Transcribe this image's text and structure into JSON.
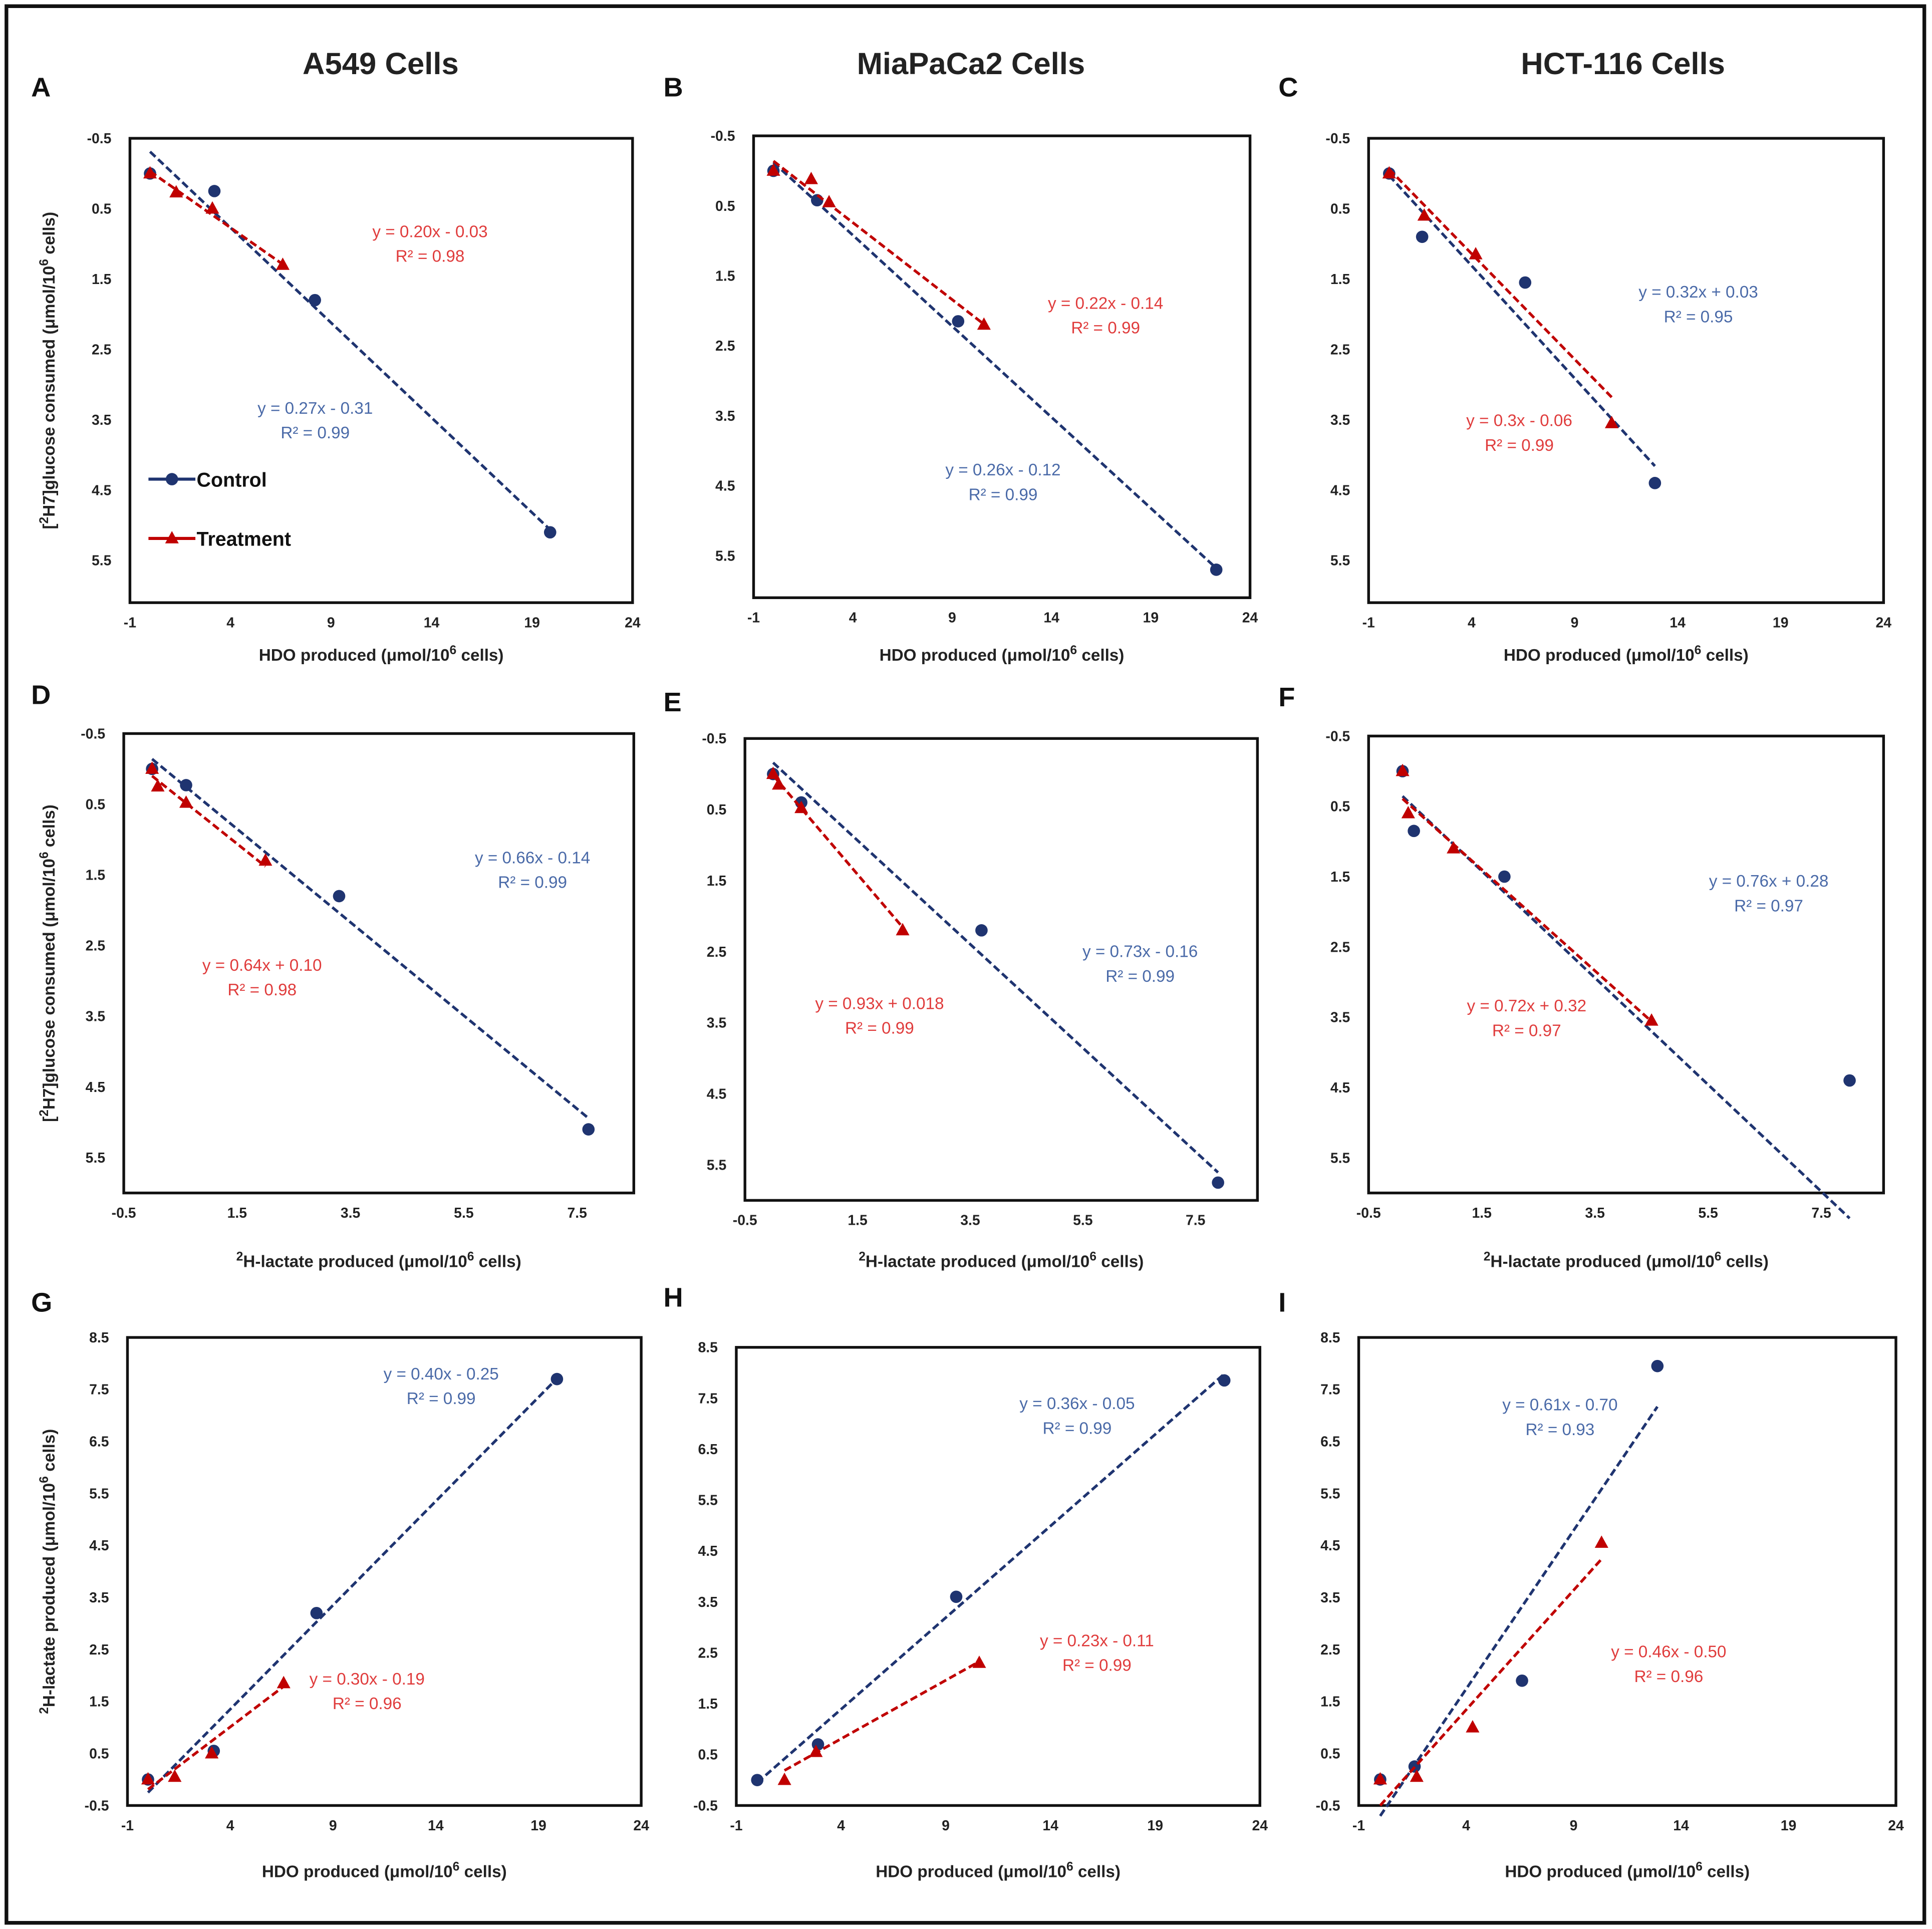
{
  "colors": {
    "control": "#1f3470",
    "treatment": "#c00000",
    "control_text": "#4a6aa8",
    "treatment_text": "#e03c3c"
  },
  "column_titles": [
    "A549 Cells",
    "MiaPaCa2 Cells",
    "HCT-116 Cells"
  ],
  "legend": {
    "control": "Control",
    "treatment": "Treatment"
  },
  "labels": {
    "glucose": {
      "pre": "[",
      "sup": "2",
      "post": "H7]glucose consumed (μmol/10",
      "sup2": "6",
      "post2": " cells)"
    },
    "lactate_y": {
      "pre": "",
      "sup": "2",
      "post": "H-lactate produced (μmol/10",
      "sup2": "6",
      "post2": " cells)"
    },
    "hdo": {
      "pre": "",
      "sup": "",
      "post": "HDO produced (μmol/10",
      "sup2": "6",
      "post2": " cells)"
    },
    "lactate_x": {
      "pre": "",
      "sup": "2",
      "post": "H-lactate produced (μmol/10",
      "sup2": "6",
      "post2": " cells)"
    }
  },
  "chart_data": [
    {
      "panel": "A",
      "type": "scatter",
      "xlabel_key": "hdo",
      "ylabel_key": "glucose",
      "xlim": [
        -1,
        24
      ],
      "ylim": [
        -0.5,
        6.1
      ],
      "y_inverted": true,
      "xticks": [
        "-1",
        "4",
        "9",
        "14",
        "19",
        "24"
      ],
      "yticks": [
        "-0.5",
        "0.5",
        "1.5",
        "2.5",
        "3.5",
        "4.5",
        "5.5"
      ],
      "series": [
        {
          "name": "Control",
          "points": [
            [
              0,
              0
            ],
            [
              3.2,
              0.25
            ],
            [
              8.2,
              1.8
            ],
            [
              19.9,
              5.1
            ]
          ],
          "fit": {
            "m": 0.27,
            "b": -0.31
          },
          "equation": "y = 0.27x - 0.31",
          "r2": "R² = 0.99"
        },
        {
          "name": "Treatment",
          "points": [
            [
              0,
              0
            ],
            [
              1.3,
              0.27
            ],
            [
              3.1,
              0.5
            ],
            [
              6.6,
              1.3
            ]
          ],
          "fit": {
            "m": 0.2,
            "b": -0.03
          },
          "equation": "y = 0.20x - 0.03",
          "r2": "R² = 0.98"
        }
      ]
    },
    {
      "panel": "B",
      "type": "scatter",
      "xlabel_key": "hdo",
      "ylabel_key": "glucose",
      "xlim": [
        -1,
        24
      ],
      "ylim": [
        -0.5,
        6.1
      ],
      "y_inverted": true,
      "xticks": [
        "-1",
        "4",
        "9",
        "14",
        "19",
        "24"
      ],
      "yticks": [
        "-0.5",
        "0.5",
        "1.5",
        "2.5",
        "3.5",
        "4.5",
        "5.5"
      ],
      "series": [
        {
          "name": "Control",
          "points": [
            [
              0,
              0
            ],
            [
              2.2,
              0.42
            ],
            [
              9.3,
              2.15
            ],
            [
              22.3,
              5.7
            ]
          ],
          "fit": {
            "m": 0.26,
            "b": -0.12
          },
          "equation": "y = 0.26x - 0.12",
          "r2": "R² = 0.99"
        },
        {
          "name": "Treatment",
          "points": [
            [
              0,
              0
            ],
            [
              1.9,
              0.12
            ],
            [
              2.8,
              0.45
            ],
            [
              10.6,
              2.2
            ]
          ],
          "fit": {
            "m": 0.22,
            "b": -0.14
          },
          "equation": "y = 0.22x - 0.14",
          "r2": "R² = 0.99"
        }
      ]
    },
    {
      "panel": "C",
      "type": "scatter",
      "xlabel_key": "hdo",
      "ylabel_key": "glucose",
      "xlim": [
        -1,
        24
      ],
      "ylim": [
        -0.5,
        6.1
      ],
      "y_inverted": true,
      "xticks": [
        "-1",
        "4",
        "9",
        "14",
        "19",
        "24"
      ],
      "yticks": [
        "-0.5",
        "0.5",
        "1.5",
        "2.5",
        "3.5",
        "4.5",
        "5.5"
      ],
      "series": [
        {
          "name": "Control",
          "points": [
            [
              0,
              0
            ],
            [
              1.6,
              0.9
            ],
            [
              6.6,
              1.55
            ],
            [
              12.9,
              4.4
            ]
          ],
          "fit": {
            "m": 0.32,
            "b": 0.03
          },
          "equation": "y = 0.32x + 0.03",
          "r2": "R² = 0.95"
        },
        {
          "name": "Treatment",
          "points": [
            [
              0,
              0
            ],
            [
              1.7,
              0.6
            ],
            [
              4.2,
              1.15
            ],
            [
              10.8,
              3.55
            ]
          ],
          "fit": {
            "m": 0.3,
            "b": -0.06
          },
          "equation": "y = 0.3x - 0.06",
          "r2": "R² = 0.99"
        }
      ]
    },
    {
      "panel": "D",
      "type": "scatter",
      "xlabel_key": "lactate_x",
      "ylabel_key": "glucose",
      "xlim": [
        -0.5,
        8.5
      ],
      "ylim": [
        -0.5,
        6.0
      ],
      "y_inverted": true,
      "xticks": [
        "-0.5",
        "1.5",
        "3.5",
        "5.5",
        "7.5"
      ],
      "yticks": [
        "-0.5",
        "0.5",
        "1.5",
        "2.5",
        "3.5",
        "4.5",
        "5.5"
      ],
      "series": [
        {
          "name": "Control",
          "points": [
            [
              0,
              0
            ],
            [
              0.6,
              0.23
            ],
            [
              3.3,
              1.8
            ],
            [
              7.7,
              5.1
            ]
          ],
          "fit": {
            "m": 0.66,
            "b": -0.14
          },
          "equation": "y = 0.66x - 0.14",
          "r2": "R² = 0.99"
        },
        {
          "name": "Treatment",
          "points": [
            [
              0,
              0
            ],
            [
              0.1,
              0.25
            ],
            [
              0.6,
              0.48
            ],
            [
              2.0,
              1.3
            ]
          ],
          "fit": {
            "m": 0.64,
            "b": 0.1
          },
          "equation": "y = 0.64x + 0.10",
          "r2": "R² = 0.98"
        }
      ]
    },
    {
      "panel": "E",
      "type": "scatter",
      "xlabel_key": "lactate_x",
      "ylabel_key": "glucose",
      "xlim": [
        -0.5,
        8.6
      ],
      "ylim": [
        -0.5,
        6.0
      ],
      "y_inverted": true,
      "xticks": [
        "-0.5",
        "1.5",
        "3.5",
        "5.5",
        "7.5"
      ],
      "yticks": [
        "-0.5",
        "0.5",
        "1.5",
        "2.5",
        "3.5",
        "4.5",
        "5.5"
      ],
      "series": [
        {
          "name": "Control",
          "points": [
            [
              0,
              0
            ],
            [
              0.5,
              0.4
            ],
            [
              3.7,
              2.2
            ],
            [
              7.9,
              5.75
            ]
          ],
          "fit": {
            "m": 0.73,
            "b": -0.16
          },
          "equation": "y = 0.73x - 0.16",
          "r2": "R² = 0.99"
        },
        {
          "name": "Treatment",
          "points": [
            [
              0,
              0
            ],
            [
              0.1,
              0.15
            ],
            [
              0.5,
              0.48
            ],
            [
              2.3,
              2.2
            ]
          ],
          "fit": {
            "m": 0.93,
            "b": 0.018
          },
          "equation": "y = 0.93x + 0.018",
          "r2": "R² = 0.99"
        }
      ]
    },
    {
      "panel": "F",
      "type": "scatter",
      "xlabel_key": "lactate_x",
      "ylabel_key": "glucose",
      "xlim": [
        -0.5,
        8.6
      ],
      "ylim": [
        -0.5,
        6.0
      ],
      "y_inverted": true,
      "xticks": [
        "-0.5",
        "1.5",
        "3.5",
        "5.5",
        "7.5"
      ],
      "yticks": [
        "-0.5",
        "0.5",
        "1.5",
        "2.5",
        "3.5",
        "4.5",
        "5.5"
      ],
      "series": [
        {
          "name": "Control",
          "points": [
            [
              0.1,
              0
            ],
            [
              0.3,
              0.85
            ],
            [
              1.9,
              1.5
            ],
            [
              8.0,
              4.4
            ]
          ],
          "fit": {
            "m": 0.76,
            "b": 0.28
          },
          "equation": "y = 0.76x + 0.28",
          "r2": "R² = 0.97"
        },
        {
          "name": "Treatment",
          "points": [
            [
              0.1,
              0
            ],
            [
              0.2,
              0.6
            ],
            [
              1.0,
              1.1
            ],
            [
              4.5,
              3.55
            ]
          ],
          "fit": {
            "m": 0.72,
            "b": 0.32
          },
          "equation": "y = 0.72x + 0.32",
          "r2": "R² = 0.97"
        }
      ]
    },
    {
      "panel": "G",
      "type": "scatter",
      "xlabel_key": "hdo",
      "ylabel_key": "lactate_y",
      "xlim": [
        -1,
        24
      ],
      "ylim": [
        -0.5,
        8.5
      ],
      "y_inverted": false,
      "xticks": [
        "-1",
        "4",
        "9",
        "14",
        "19",
        "24"
      ],
      "yticks": [
        "8.5",
        "7.5",
        "6.5",
        "5.5",
        "4.5",
        "3.5",
        "2.5",
        "1.5",
        "0.5",
        "-0.5"
      ],
      "series": [
        {
          "name": "Control",
          "points": [
            [
              0,
              0
            ],
            [
              3.2,
              0.55
            ],
            [
              8.2,
              3.2
            ],
            [
              19.9,
              7.7
            ]
          ],
          "fit": {
            "m": 0.4,
            "b": -0.25
          },
          "equation": "y = 0.40x - 0.25",
          "r2": "R² = 0.99"
        },
        {
          "name": "Treatment",
          "points": [
            [
              0,
              0
            ],
            [
              1.3,
              0.05
            ],
            [
              3.1,
              0.5
            ],
            [
              6.6,
              1.85
            ]
          ],
          "fit": {
            "m": 0.3,
            "b": -0.19
          },
          "equation": "y = 0.30x - 0.19",
          "r2": "R² = 0.96"
        }
      ]
    },
    {
      "panel": "H",
      "type": "scatter",
      "xlabel_key": "hdo",
      "ylabel_key": "lactate_y",
      "xlim": [
        -1,
        24
      ],
      "ylim": [
        -0.5,
        8.5
      ],
      "y_inverted": false,
      "xticks": [
        "-1",
        "4",
        "9",
        "14",
        "19",
        "24"
      ],
      "yticks": [
        "8.5",
        "7.5",
        "6.5",
        "5.5",
        "4.5",
        "3.5",
        "2.5",
        "1.5",
        "0.5",
        "-0.5"
      ],
      "series": [
        {
          "name": "Control",
          "points": [
            [
              0,
              0
            ],
            [
              2.9,
              0.7
            ],
            [
              9.5,
              3.6
            ],
            [
              22.3,
              7.85
            ]
          ],
          "fit": {
            "m": 0.36,
            "b": -0.05
          },
          "equation": "y = 0.36x - 0.05",
          "r2": "R² = 0.99"
        },
        {
          "name": "Treatment",
          "points": [
            [
              1.3,
              0
            ],
            [
              2.8,
              0.55
            ],
            [
              10.6,
              2.3
            ]
          ],
          "fit": {
            "m": 0.23,
            "b": -0.11
          },
          "equation": "y = 0.23x - 0.11",
          "r2": "R² = 0.99"
        }
      ]
    },
    {
      "panel": "I",
      "type": "scatter",
      "xlabel_key": "hdo",
      "ylabel_key": "lactate_y",
      "xlim": [
        -1,
        24
      ],
      "ylim": [
        -0.5,
        8.5
      ],
      "y_inverted": false,
      "xticks": [
        "-1",
        "4",
        "9",
        "14",
        "19",
        "24"
      ],
      "yticks": [
        "8.5",
        "7.5",
        "6.5",
        "5.5",
        "4.5",
        "3.5",
        "2.5",
        "1.5",
        "0.5",
        "-0.5"
      ],
      "series": [
        {
          "name": "Control",
          "points": [
            [
              0,
              0
            ],
            [
              1.6,
              0.25
            ],
            [
              6.6,
              1.9
            ],
            [
              12.9,
              7.95
            ]
          ],
          "fit": {
            "m": 0.61,
            "b": -0.7
          },
          "equation": "y = 0.61x - 0.70",
          "r2": "R² = 0.93"
        },
        {
          "name": "Treatment",
          "points": [
            [
              0,
              0
            ],
            [
              1.7,
              0.05
            ],
            [
              4.3,
              1.0
            ],
            [
              10.3,
              4.55
            ]
          ],
          "fit": {
            "m": 0.46,
            "b": -0.5
          },
          "equation": "y = 0.46x - 0.50",
          "r2": "R² = 0.96"
        }
      ]
    }
  ]
}
